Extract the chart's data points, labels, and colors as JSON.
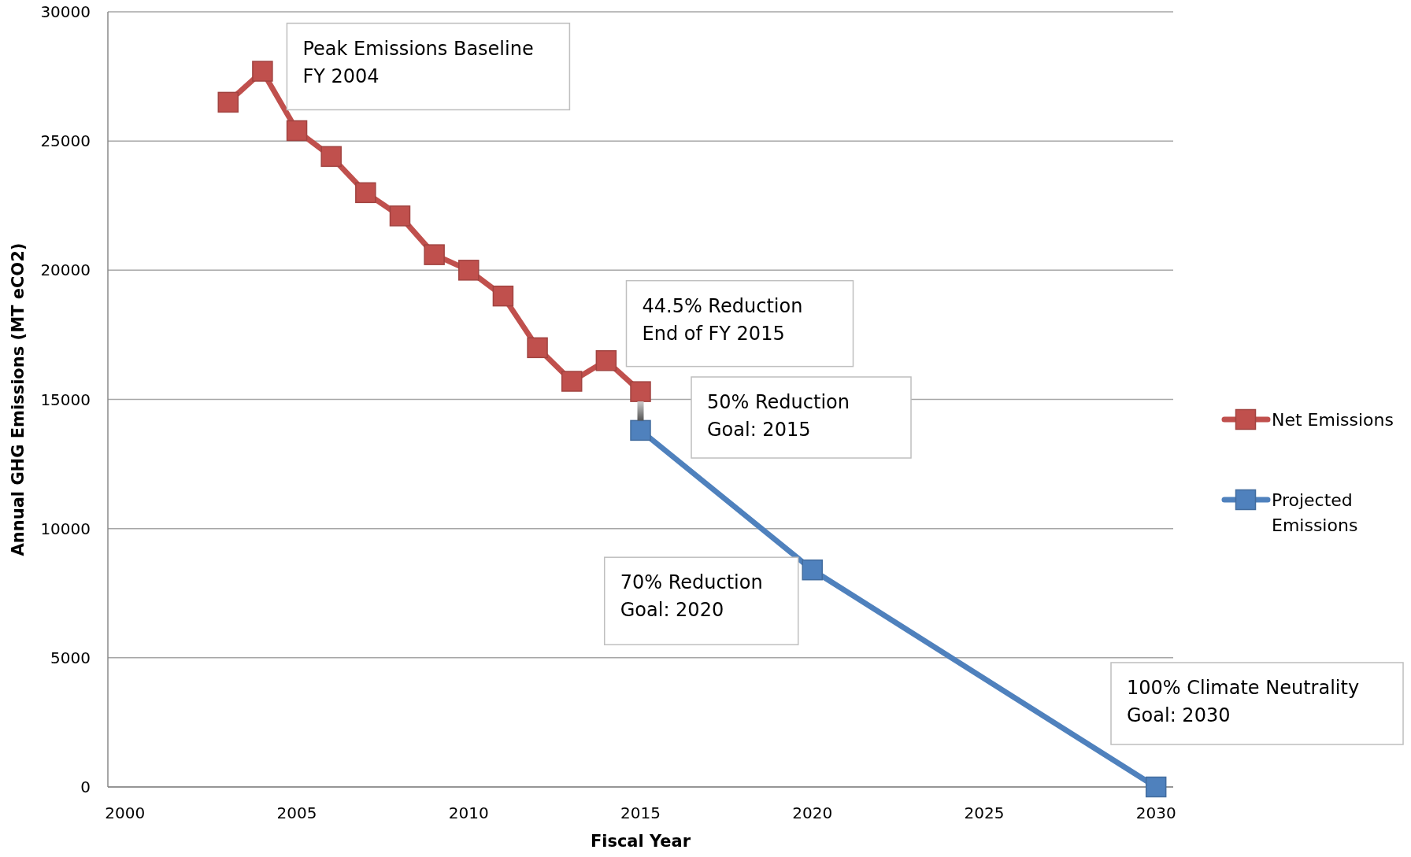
{
  "chart_data": {
    "type": "line",
    "xlabel": "Fiscal Year",
    "ylabel": "Annual GHG Emissions (MT eCO2)",
    "xlim": [
      1999.5,
      2030.5
    ],
    "xticks": [
      2000,
      2005,
      2010,
      2015,
      2020,
      2025,
      2030
    ],
    "ylim": [
      0,
      30000
    ],
    "yticks": [
      0,
      5000,
      10000,
      15000,
      20000,
      25000,
      30000
    ],
    "grid": "y",
    "legend": "right",
    "marker": "square",
    "line_style": "solid",
    "series": [
      {
        "name": "Net Emissions",
        "color": "#c0504d",
        "x": [
          2003,
          2004,
          2005,
          2006,
          2007,
          2008,
          2009,
          2010,
          2011,
          2012,
          2013,
          2014,
          2015
        ],
        "values": [
          26500,
          27700,
          25400,
          24400,
          23000,
          22100,
          20600,
          20000,
          19000,
          17000,
          15700,
          16500,
          15300
        ]
      },
      {
        "name": "Projected Emissions",
        "color": "#4f81bd",
        "x": [
          2015,
          2020,
          2030
        ],
        "values": [
          13800,
          8400,
          0
        ]
      }
    ],
    "annotations": [
      {
        "text": "Peak Emissions Baseline\nFY 2004",
        "x": 2004,
        "y": 27700
      },
      {
        "text": "44.5% Reduction\nEnd of FY 2015",
        "x": 2015,
        "y": 15300
      },
      "50% Reduction\nGoal: 2015",
      {
        "text": "70% Reduction\nGoal: 2020",
        "x": 2020,
        "y": 8400
      },
      "100% Climate Neutrality\nGoal: 2030"
    ]
  }
}
